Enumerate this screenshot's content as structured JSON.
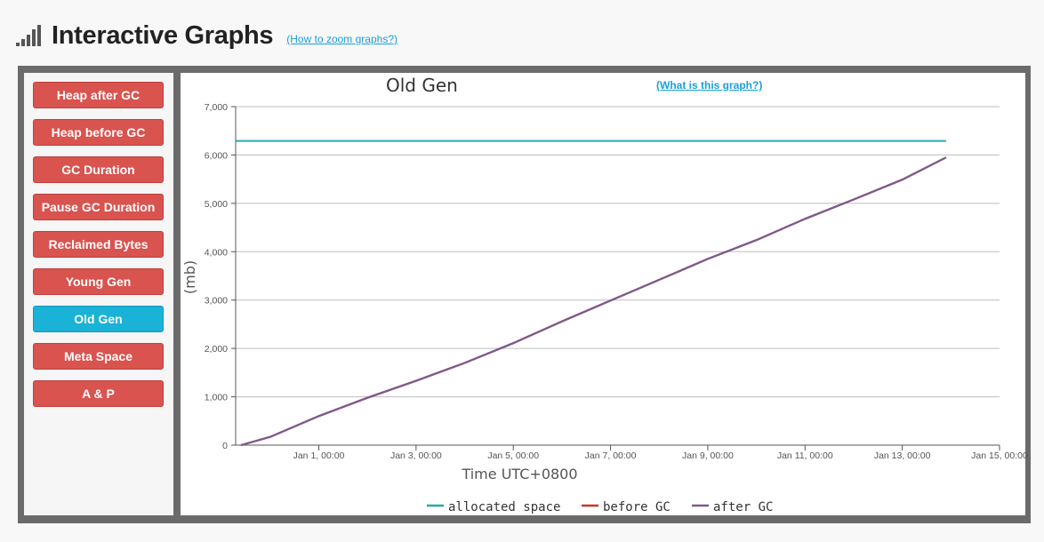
{
  "header": {
    "title": "Interactive Graphs",
    "zoom_link": "(How to zoom graphs?)"
  },
  "sidebar": {
    "items": [
      {
        "label": "Heap after GC",
        "active": false
      },
      {
        "label": "Heap before GC",
        "active": false
      },
      {
        "label": "GC Duration",
        "active": false
      },
      {
        "label": "Pause GC Duration",
        "active": false
      },
      {
        "label": "Reclaimed Bytes",
        "active": false
      },
      {
        "label": "Young Gen",
        "active": false
      },
      {
        "label": "Old Gen",
        "active": true
      },
      {
        "label": "Meta Space",
        "active": false
      },
      {
        "label": "A & P",
        "active": false
      }
    ]
  },
  "chart_header": {
    "what_link": "(What is this graph?)"
  },
  "colors": {
    "allocated": "#26aaa6",
    "before": "#c0392b",
    "after": "#7b5b8f",
    "button": "#d9534f",
    "button_active": "#1ab2d6"
  },
  "chart_data": {
    "type": "line",
    "title": "Old Gen",
    "xlabel": "Time UTC+0800",
    "ylabel": "(mb)",
    "ylim": [
      0,
      7000
    ],
    "yticks": [
      0,
      1000,
      2000,
      3000,
      4000,
      5000,
      6000,
      7000
    ],
    "ytick_labels": [
      "0",
      "1,000",
      "2,000",
      "3,000",
      "4,000",
      "5,000",
      "6,000",
      "7,000"
    ],
    "xlim_days": [
      -0.71,
      15.0
    ],
    "xticks": [
      {
        "day": 1,
        "label": "Jan 1, 00:00"
      },
      {
        "day": 3,
        "label": "Jan 3, 00:00"
      },
      {
        "day": 5,
        "label": "Jan 5, 00:00"
      },
      {
        "day": 7,
        "label": "Jan 7, 00:00"
      },
      {
        "day": 9,
        "label": "Jan 9, 00:00"
      },
      {
        "day": 11,
        "label": "Jan 11, 00:00"
      },
      {
        "day": 13,
        "label": "Jan 13, 00:00"
      },
      {
        "day": 15,
        "label": "Jan 15, 00:00"
      }
    ],
    "legend_position": "bottom",
    "series": [
      {
        "name": "allocated space",
        "x_days": [
          -0.71,
          13.9
        ],
        "values": [
          6290,
          6290
        ]
      },
      {
        "name": "before GC",
        "x_days": [
          -0.6,
          0.0,
          1.0,
          2.0,
          3.0,
          4.0,
          5.0,
          6.0,
          7.0,
          8.0,
          9.0,
          10.0,
          11.0,
          12.0,
          13.0,
          13.9
        ],
        "values": [
          0,
          170,
          600,
          980,
          1330,
          1700,
          2110,
          2560,
          2990,
          3420,
          3850,
          4240,
          4680,
          5080,
          5490,
          5950
        ]
      },
      {
        "name": "after GC",
        "x_days": [
          -0.6,
          0.0,
          1.0,
          2.0,
          3.0,
          4.0,
          5.0,
          6.0,
          7.0,
          8.0,
          9.0,
          10.0,
          11.0,
          12.0,
          13.0,
          13.9
        ],
        "values": [
          0,
          170,
          600,
          980,
          1330,
          1700,
          2110,
          2560,
          2990,
          3420,
          3850,
          4240,
          4680,
          5080,
          5490,
          5950
        ]
      }
    ]
  }
}
